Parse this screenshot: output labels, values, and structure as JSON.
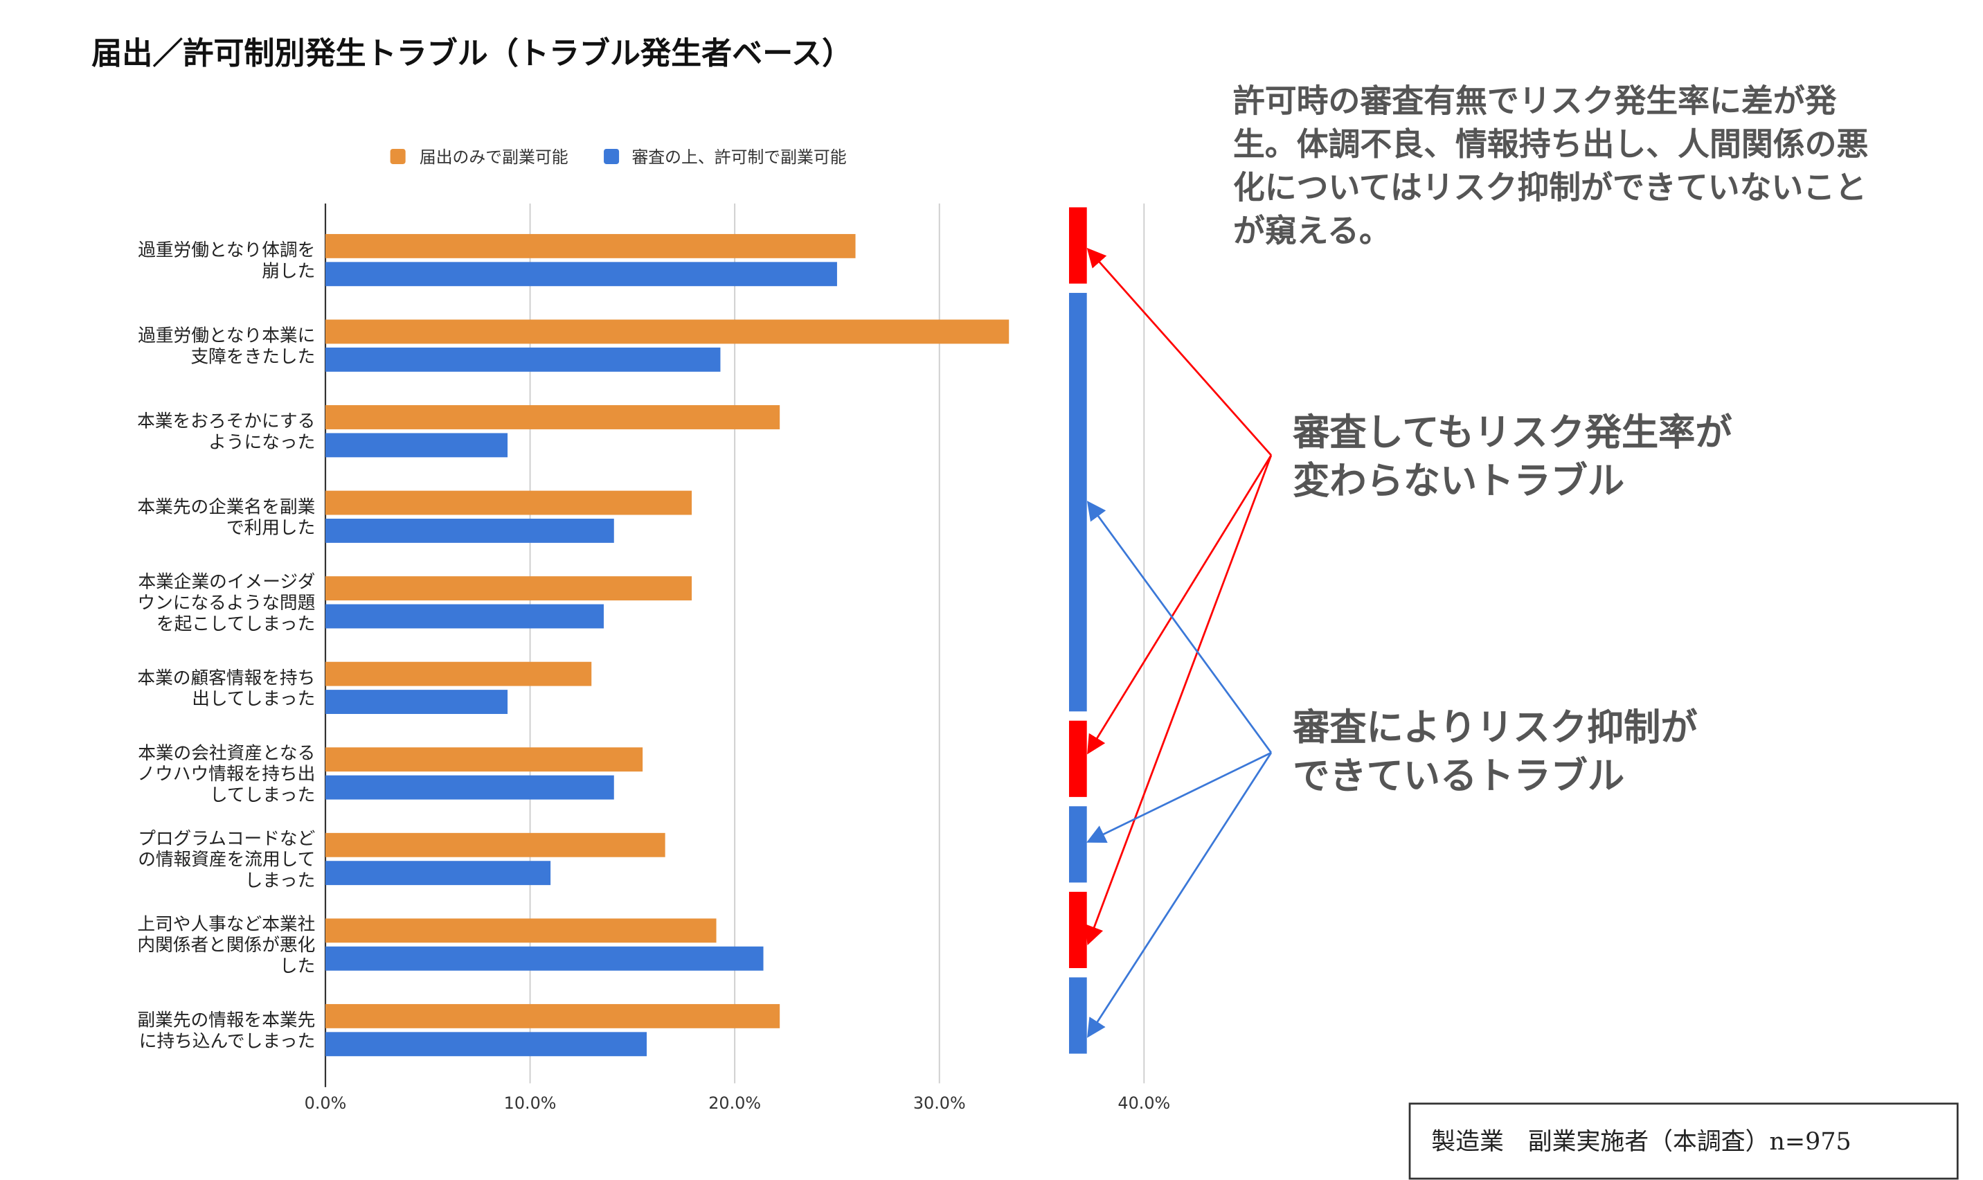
{
  "chart_data": {
    "type": "bar",
    "orientation": "horizontal",
    "title": "届出／許可制別発生トラブル（トラブル発生者ベース）",
    "categories": [
      [
        "過重労働となり体調を",
        "崩した"
      ],
      [
        "過重労働となり本業に",
        "支障をきたした"
      ],
      [
        "本業をおろそかにする",
        "ようになった"
      ],
      [
        "本業先の企業名を副業",
        "で利用した"
      ],
      [
        "本業企業のイメージダ",
        "ウンになるような問題",
        "を起こしてしまった"
      ],
      [
        "本業の顧客情報を持ち",
        "出してしまった"
      ],
      [
        "本業の会社資産となる",
        "ノウハウ情報を持ち出",
        "してしまった"
      ],
      [
        "プログラムコードなど",
        "の情報資産を流用して",
        "しまった"
      ],
      [
        "上司や人事など本業社",
        "内関係者と関係が悪化",
        "した"
      ],
      [
        "副業先の情報を本業先",
        "に持ち込んでしまった"
      ]
    ],
    "series": [
      {
        "name": "届出のみで副業可能",
        "color": "#E8913A",
        "values": [
          25.9,
          33.4,
          22.2,
          17.9,
          17.9,
          13.0,
          15.5,
          16.6,
          19.1,
          22.2
        ]
      },
      {
        "name": "審査の上、許可制で副業可能",
        "color": "#3B78D8",
        "values": [
          25.0,
          19.3,
          8.9,
          14.1,
          13.6,
          8.9,
          14.1,
          11.0,
          21.4,
          15.7
        ]
      }
    ],
    "xlim": [
      0,
      40
    ],
    "xticks": [
      "0.0%",
      "10.0%",
      "20.0%",
      "30.0%",
      "40.0%"
    ],
    "grid": true,
    "legend_position": "top",
    "group_markers": [
      {
        "categories": [
          0
        ],
        "color": "#FF0000"
      },
      {
        "categories": [
          1,
          2,
          3,
          4,
          5
        ],
        "color": "#3B78D8"
      },
      {
        "categories": [
          6
        ],
        "color": "#FF0000"
      },
      {
        "categories": [
          7
        ],
        "color": "#3B78D8"
      },
      {
        "categories": [
          8
        ],
        "color": "#FF0000"
      },
      {
        "categories": [
          9
        ],
        "color": "#3B78D8"
      }
    ]
  },
  "annotations": {
    "summary": [
      "許可時の審査有無でリスク発生率に差が発",
      "生。体調不良、情報持ち出し、人間関係の悪",
      "化についてはリスク抑制ができていないこと",
      "が窺える。"
    ],
    "unchanged": [
      "審査してもリスク発生率が",
      "変わらないトラブル"
    ],
    "suppressed": [
      "審査によりリスク抑制が",
      "できているトラブル"
    ],
    "sample_box": "製造業　副業実施者（本調査）n=975"
  }
}
